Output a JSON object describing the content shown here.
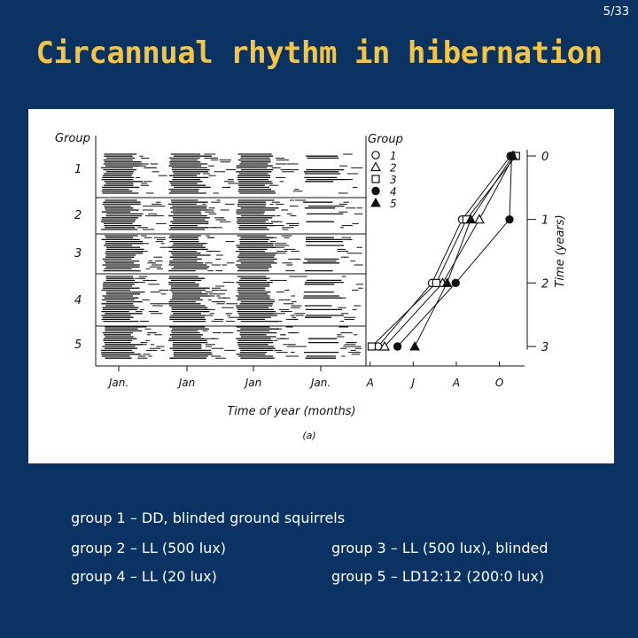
{
  "slide": {
    "page_number": "5/33",
    "title": "Circannual rhythm in hibernation",
    "captions": [
      "group 1 – DD, blinded ground squirrels",
      "group 2 – LL (500 lux)",
      "group 3 – LL (500 lux), blinded",
      "group 4 – LL (20 lux)",
      "group 5 – LD12:12 (200:0 lux)"
    ]
  },
  "chart_data": [
    {
      "type": "table",
      "description_label": "actogram",
      "group_header": "Group",
      "groups": [
        "1",
        "2",
        "3",
        "4",
        "5"
      ],
      "x_tick_labels": [
        "Jan.",
        "Jan",
        "Jan",
        "Jan."
      ]
    },
    {
      "type": "line",
      "legend_title": "Group",
      "legend_entries": [
        "1",
        "2",
        "3",
        "4",
        "5"
      ],
      "x_tick_labels": [
        "A",
        "J",
        "A",
        "O"
      ],
      "x_categories_months": [
        "Apr",
        "Jun",
        "Aug",
        "Oct"
      ],
      "ylabel": "Time (years)",
      "yticks": [
        0,
        1,
        2,
        3
      ],
      "ylim": [
        -0.1,
        3.1
      ],
      "series": [
        {
          "name": "1",
          "marker": "circle-open",
          "points": [
            {
              "month": 10.85,
              "year": 0.0
            },
            {
              "month": 8.6,
              "year": 1.0
            },
            {
              "month": 7.2,
              "year": 2.0
            },
            {
              "month": 4.7,
              "year": 3.0
            }
          ]
        },
        {
          "name": "2",
          "marker": "triangle-open",
          "points": [
            {
              "month": 11.0,
              "year": 0.0
            },
            {
              "month": 9.4,
              "year": 1.0
            },
            {
              "month": 7.7,
              "year": 2.0
            },
            {
              "month": 5.0,
              "year": 3.0
            }
          ]
        },
        {
          "name": "3",
          "marker": "square-open",
          "points": [
            {
              "month": 11.1,
              "year": 0.0
            },
            {
              "month": 8.8,
              "year": 1.0
            },
            {
              "month": 7.4,
              "year": 2.0
            },
            {
              "month": 4.4,
              "year": 3.0
            }
          ]
        },
        {
          "name": "4",
          "marker": "circle-filled",
          "points": [
            {
              "month": 10.9,
              "year": 0.0
            },
            {
              "month": 10.8,
              "year": 1.0
            },
            {
              "month": 8.3,
              "year": 2.0
            },
            {
              "month": 5.6,
              "year": 3.0
            }
          ]
        },
        {
          "name": "5",
          "marker": "triangle-filled",
          "points": [
            {
              "month": 10.95,
              "year": 0.0
            },
            {
              "month": 9.0,
              "year": 1.0
            },
            {
              "month": 7.9,
              "year": 2.0
            },
            {
              "month": 6.4,
              "year": 3.0
            }
          ]
        }
      ],
      "xlabel": "Time of year (months)",
      "panel_label": "(a)"
    }
  ]
}
